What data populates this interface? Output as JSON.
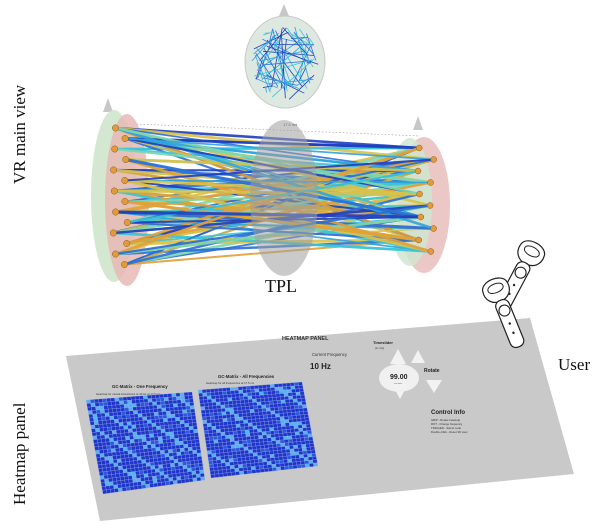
{
  "labels": {
    "vr_main_view": "VR main view",
    "heatmap_panel": "Heatmap panel",
    "tpl": "TPL",
    "user": "User"
  },
  "timeline": {
    "center_label": "17.5 ms"
  },
  "panel": {
    "title": "HEATMAP PANEL",
    "frequency_label": "Current Frequency",
    "frequency_value": "10 Hz",
    "heatmap_left": {
      "title": "GC-Matrix - One Frequency",
      "subtitle": "Heatmap for causal interactions at 10 Hz at 17.5 ms"
    },
    "heatmap_right": {
      "title": "GC-Matrix - All Frequencies",
      "subtitle": "Heatmap for all frequencies at 17.5 ms"
    },
    "time_control": {
      "label": "Timeslider",
      "sub": "(in ms)",
      "value": "99.00",
      "value_sub": "(3.20)",
      "rotate": "Rotate"
    },
    "control_info": {
      "title": "Control Info",
      "lines": [
        "GRIP - Rotate heatmap",
        "ROT - Change frequency",
        "TRIGGER - Select node",
        "Double-Click - Reset 3D view"
      ]
    }
  },
  "colors": {
    "edge_palette": [
      "#1e3fbf",
      "#2a6fd6",
      "#2fa3e0",
      "#3cc4d8",
      "#7fd6b0",
      "#d9c24a",
      "#e0a13a"
    ],
    "heatmap_base": "#1f34c9",
    "heatmap_light": "#5ab0ee",
    "panel_gray": "#c9c9c9",
    "left_layer_green": "#cfe6cc",
    "left_layer_red": "#e7b9b5",
    "right_layer_red": "#e9c2c0",
    "right_layer_green": "#cfe6d0",
    "tpl_gray": "#9e9e9e",
    "node_color": "#e39a3b"
  },
  "icons": [
    "vr-controller-icon",
    "vr-controller-icon"
  ]
}
